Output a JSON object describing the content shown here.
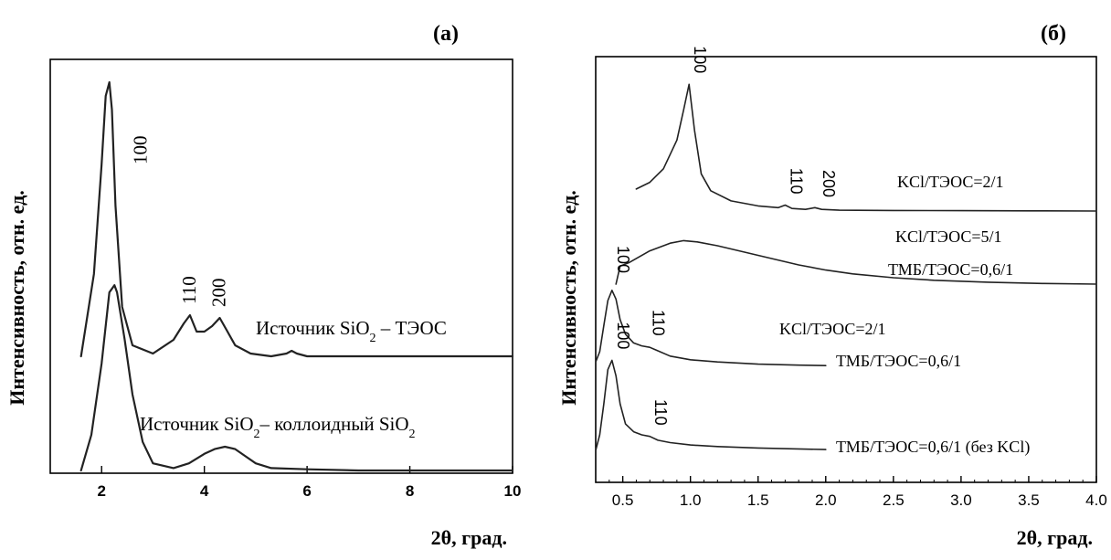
{
  "chart_data": [
    {
      "panel_label": "(a)",
      "type": "line",
      "ylabel": "Интенсивность, отн. ед.",
      "xlabel": "2θ, град.",
      "xlim": [
        1,
        10
      ],
      "xticks": [
        "2",
        "4",
        "6",
        "8",
        "10"
      ],
      "grid": false,
      "series": [
        {
          "name_parts": [
            "Источник SiO",
            "2",
            " – ТЭОС"
          ],
          "x": [
            1.6,
            1.85,
            2.0,
            2.08,
            2.15,
            2.2,
            2.27,
            2.4,
            2.6,
            3.0,
            3.4,
            3.6,
            3.72,
            3.85,
            4.0,
            4.15,
            4.3,
            4.45,
            4.6,
            4.9,
            5.3,
            5.6,
            5.7,
            5.8,
            6.0,
            7.0,
            8.0,
            10.0
          ],
          "y": [
            0.0,
            0.3,
            0.7,
            0.95,
            1.0,
            0.9,
            0.55,
            0.18,
            0.04,
            0.01,
            0.06,
            0.12,
            0.15,
            0.09,
            0.09,
            0.11,
            0.14,
            0.09,
            0.04,
            0.01,
            0.0,
            0.01,
            0.02,
            0.01,
            0.0,
            0.0,
            0.0,
            0.0
          ],
          "peak_labels": [
            {
              "text": "100",
              "x": 2.2
            },
            {
              "text": "110",
              "x": 3.72
            },
            {
              "text": "200",
              "x": 4.3
            }
          ]
        },
        {
          "name_parts": [
            "Источник SiO",
            "2",
            "– коллоидный SiO",
            "2"
          ],
          "x": [
            1.6,
            1.8,
            2.0,
            2.15,
            2.25,
            2.3,
            2.45,
            2.6,
            2.8,
            3.0,
            3.4,
            3.7,
            4.0,
            4.2,
            4.4,
            4.6,
            4.8,
            5.0,
            5.3,
            6.0,
            7.0,
            8.0,
            10.0
          ],
          "y": [
            0.0,
            0.15,
            0.45,
            0.75,
            0.78,
            0.75,
            0.55,
            0.32,
            0.12,
            0.03,
            0.01,
            0.03,
            0.07,
            0.09,
            0.1,
            0.09,
            0.06,
            0.03,
            0.01,
            0.005,
            0.0,
            0.0,
            0.0
          ]
        }
      ]
    },
    {
      "panel_label": "(б)",
      "type": "line",
      "ylabel": "Интенсивность, отн. ед.",
      "xlabel": "2θ, град.",
      "xlim": [
        0.3,
        4.0
      ],
      "xticks": [
        "0.5",
        "1.0",
        "1.5",
        "2.0",
        "2.5",
        "3.0",
        "3.5",
        "4.0"
      ],
      "grid": false,
      "series": [
        {
          "name_lines": [
            "KCl/ТЭОС=2/1"
          ],
          "x": [
            0.6,
            0.7,
            0.8,
            0.9,
            0.95,
            0.99,
            1.03,
            1.08,
            1.15,
            1.3,
            1.5,
            1.65,
            1.7,
            1.75,
            1.85,
            1.92,
            1.97,
            2.1,
            2.5,
            3.0,
            3.5,
            4.0
          ],
          "y": [
            0.13,
            0.17,
            0.25,
            0.42,
            0.6,
            0.75,
            0.48,
            0.22,
            0.12,
            0.06,
            0.03,
            0.02,
            0.035,
            0.015,
            0.01,
            0.02,
            0.01,
            0.005,
            0.003,
            0.002,
            0.001,
            0.0
          ],
          "peak_labels": [
            {
              "text": "100",
              "x": 0.99
            },
            {
              "text": "110",
              "x": 1.7
            },
            {
              "text": "200",
              "x": 1.94
            }
          ]
        },
        {
          "name_lines": [
            "KCl/ТЭОС=5/1",
            "ТМБ/ТЭОС=0,6/1"
          ],
          "x": [
            0.45,
            0.48,
            0.55,
            0.7,
            0.85,
            0.95,
            1.05,
            1.2,
            1.4,
            1.6,
            1.8,
            2.0,
            2.2,
            2.5,
            2.8,
            3.2,
            3.6,
            4.0
          ],
          "y": [
            0.0,
            0.14,
            0.17,
            0.26,
            0.32,
            0.34,
            0.33,
            0.3,
            0.25,
            0.2,
            0.15,
            0.11,
            0.08,
            0.05,
            0.03,
            0.015,
            0.005,
            0.0
          ],
          "peak_labels": [
            {
              "text": "100",
              "x": 0.42
            }
          ]
        },
        {
          "name_lines": [
            "KCl/ТЭОС=2/1",
            "ТМБ/ТЭОС=0,6/1"
          ],
          "x": [
            0.3,
            0.33,
            0.36,
            0.39,
            0.42,
            0.45,
            0.48,
            0.52,
            0.58,
            0.64,
            0.7,
            0.75,
            0.85,
            1.0,
            1.2,
            1.5,
            1.8,
            2.0
          ],
          "y": [
            0.03,
            0.1,
            0.28,
            0.45,
            0.52,
            0.46,
            0.32,
            0.22,
            0.16,
            0.14,
            0.13,
            0.11,
            0.07,
            0.045,
            0.03,
            0.015,
            0.008,
            0.005
          ],
          "peak_labels": [
            {
              "text": "110",
              "x": 0.68
            }
          ]
        },
        {
          "name_lines": [
            "ТМБ/ТЭОС=0,6/1 (без KCl)"
          ],
          "x": [
            0.3,
            0.33,
            0.36,
            0.39,
            0.42,
            0.45,
            0.48,
            0.52,
            0.58,
            0.64,
            0.7,
            0.76,
            0.85,
            1.0,
            1.2,
            1.5,
            2.0
          ],
          "y": [
            0.0,
            0.1,
            0.3,
            0.52,
            0.58,
            0.48,
            0.3,
            0.17,
            0.12,
            0.1,
            0.09,
            0.065,
            0.05,
            0.035,
            0.025,
            0.015,
            0.005
          ],
          "peak_labels": [
            {
              "text": "100",
              "x": 0.42
            },
            {
              "text": "110",
              "x": 0.7
            }
          ]
        }
      ]
    }
  ]
}
